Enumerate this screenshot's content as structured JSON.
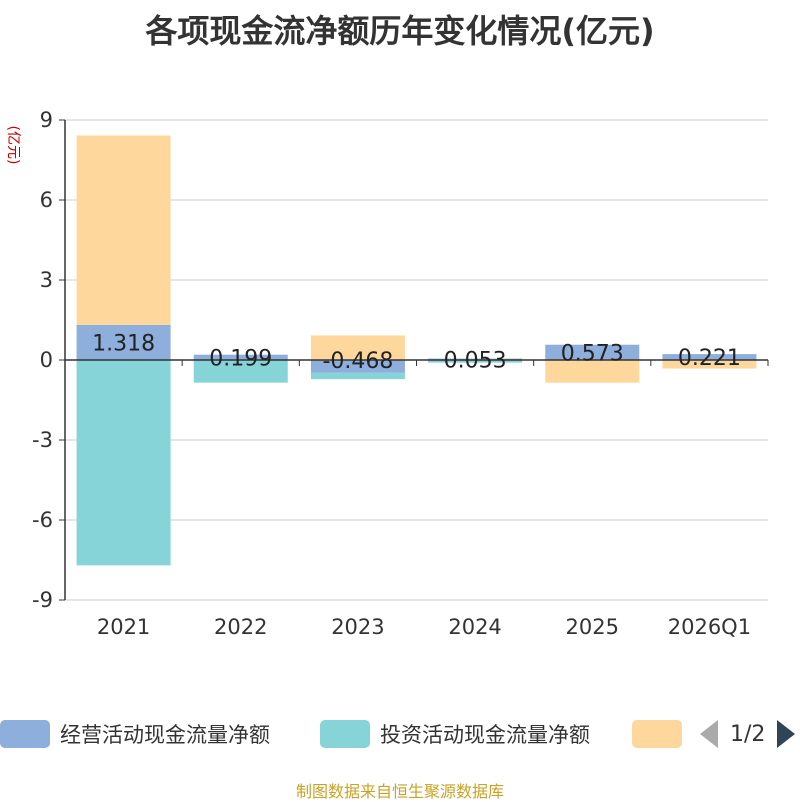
{
  "title": "各项现金流净额历年变化情况(亿元)",
  "chart_data": {
    "type": "bar",
    "stacked": true,
    "title": "各项现金流净额历年变化情况(亿元)",
    "ylabel": "(亿元)",
    "ylim": [
      -9,
      9
    ],
    "yticks": [
      9,
      6,
      3,
      0,
      -3,
      -6,
      -9
    ],
    "categories": [
      "2021",
      "2022",
      "2023",
      "2024",
      "2025",
      "2026Q1"
    ],
    "series": [
      {
        "name": "经营活动现金流量净额",
        "color": "#8eaedb",
        "values": [
          1.318,
          0.199,
          -0.468,
          0.053,
          0.573,
          0.221
        ],
        "labels": [
          "1.318",
          "0.199",
          "-0.468",
          "0.053",
          "0.573",
          "0.221"
        ]
      },
      {
        "name": "投资活动现金流量净额",
        "color": "#86d4d8",
        "values": [
          -7.7,
          -0.85,
          -0.25,
          -0.1,
          0,
          0
        ]
      },
      {
        "name": "",
        "color": "#fdd79b",
        "values": [
          7.1,
          0,
          0.92,
          0,
          -0.85,
          -0.32
        ]
      }
    ],
    "grid": true,
    "legend_position": "bottom"
  },
  "legend": {
    "items": [
      {
        "label": "经营活动现金流量净额",
        "color": "#8eaedb"
      },
      {
        "label": "投资活动现金流量净额",
        "color": "#86d4d8"
      },
      {
        "label": "",
        "color": "#fdd79b"
      }
    ],
    "page": "1/2"
  },
  "source": "制图数据来自恒生聚源数据库"
}
